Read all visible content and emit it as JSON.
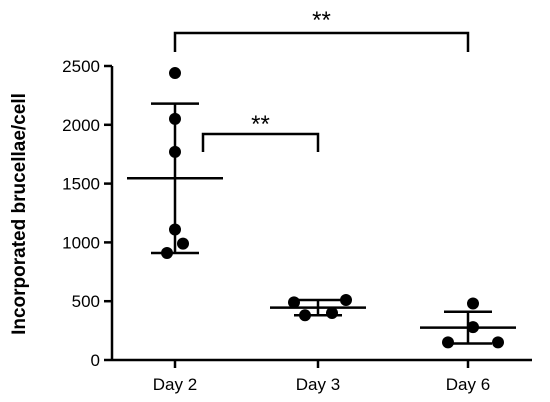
{
  "chart_data": {
    "type": "scatter",
    "title": "",
    "xlabel": "",
    "ylabel": "Incorporated brucellae/cell",
    "ylim": [
      0,
      2500
    ],
    "yticks": [
      0,
      500,
      1000,
      1500,
      2000,
      2500
    ],
    "categories": [
      "Day 2",
      "Day 3",
      "Day 6"
    ],
    "grid": false,
    "series": [
      {
        "category": "Day 2",
        "points": [
          2440,
          2050,
          1770,
          1110,
          990,
          910
        ],
        "mean": 1545,
        "error_upper": 2180,
        "error_lower": 910
      },
      {
        "category": "Day 3",
        "points": [
          490,
          510,
          400,
          380
        ],
        "mean": 445,
        "error_upper": 510,
        "error_lower": 380
      },
      {
        "category": "Day 6",
        "points": [
          480,
          280,
          150,
          150
        ],
        "mean": 275,
        "error_upper": 410,
        "error_lower": 140
      }
    ],
    "significance": [
      {
        "from": "Day 2",
        "to": "Day 6",
        "label": "**"
      },
      {
        "from": "Day 2",
        "to": "Day 3",
        "label": "**"
      }
    ]
  },
  "colors": {
    "marks": "#000000"
  }
}
